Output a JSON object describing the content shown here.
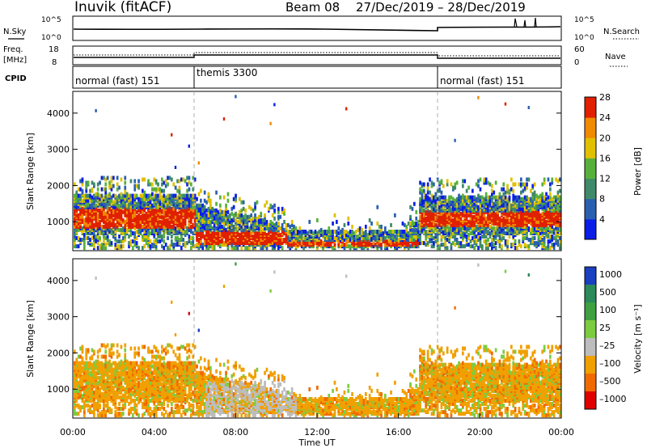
{
  "header": {
    "title": "Inuvik (fitACF)",
    "beam": "Beam 08",
    "dates": "27/Dec/2019 – 28/Dec/2019"
  },
  "status_panel": {
    "nsky_label": "N.Sky",
    "nsearch_label": "N.Search",
    "freq_label_1": "Freq.",
    "freq_label_2": "[MHz]",
    "nave_label": "Nave",
    "cpid_label": "CPID",
    "noise_ticks": [
      "10^5",
      "10^0"
    ],
    "freq_ticks": [
      "18",
      "8"
    ],
    "nave_ticks": [
      "60",
      "0"
    ],
    "cpid_segments": [
      {
        "label": "normal (fast) 151",
        "start_hour": 0,
        "end_hour": 6
      },
      {
        "label": "themis 3300",
        "start_hour": 6,
        "end_hour": 18
      },
      {
        "label": "normal (fast) 151",
        "start_hour": 18,
        "end_hour": 24
      }
    ]
  },
  "chart_data": [
    {
      "type": "heatmap",
      "name": "power",
      "ylabel": "Slant Range [km]",
      "xlabel": "",
      "xlim": [
        0,
        24
      ],
      "ylim": [
        200,
        4600
      ],
      "y_ticks": [
        "1000",
        "2000",
        "3000",
        "4000"
      ],
      "colorbar_label": "Power [dB]",
      "colorbar_ticks": [
        "4",
        "8",
        "12",
        "16",
        "20",
        "24",
        "28"
      ],
      "colorbar_colors": [
        "#0a1ee8",
        "#2a5fb0",
        "#3f8a6a",
        "#58b03c",
        "#e0c000",
        "#f08a00",
        "#e02000"
      ],
      "bands": [
        {
          "x": [
            0,
            6
          ],
          "y": [
            600,
            1600
          ]
        },
        {
          "x": [
            6,
            10.5
          ],
          "y": [
            300,
            1400
          ]
        },
        {
          "x": [
            10.5,
            17
          ],
          "y": [
            250,
            700
          ]
        },
        {
          "x": [
            17,
            24
          ],
          "y": [
            600,
            1600
          ]
        }
      ]
    },
    {
      "type": "heatmap",
      "name": "velocity",
      "ylabel": "Slant Range [km]",
      "xlabel": "Time UT",
      "xlim": [
        0,
        24
      ],
      "ylim": [
        200,
        4600
      ],
      "y_ticks": [
        "1000",
        "2000",
        "3000",
        "4000"
      ],
      "x_ticks": [
        "00:00",
        "04:00",
        "08:00",
        "12:00",
        "16:00",
        "20:00",
        "00:00"
      ],
      "colorbar_label": "Velocity [m s⁻¹]",
      "colorbar_ticks": [
        "1000",
        "500",
        "100",
        "25",
        "–25",
        "–100",
        "–500",
        "–1000"
      ],
      "colorbar_colors": [
        "#1a3fc0",
        "#2a8a5a",
        "#3fa040",
        "#7ccc40",
        "#bdbdbd",
        "#f0a000",
        "#f06a00",
        "#e00000"
      ]
    }
  ],
  "colors": {
    "orange": "#f08a00",
    "red": "#e62000",
    "green": "#4caa44",
    "gray": "#bdbdbd",
    "blue": "#1a3fc0",
    "yellow": "#e0c000"
  }
}
